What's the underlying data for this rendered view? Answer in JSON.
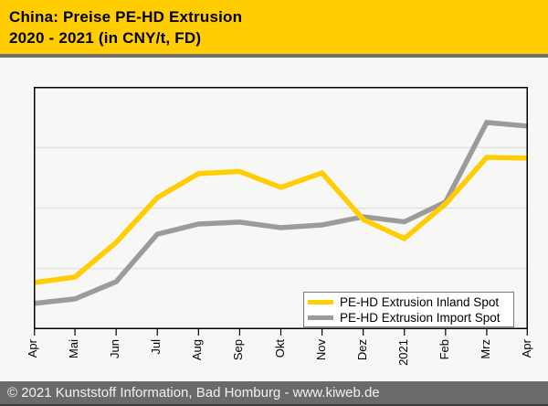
{
  "header": {
    "title_line1": "China: Preise PE-HD Extrusion",
    "title_line2": "2020 - 2021 (in CNY/t, FD)"
  },
  "colors": {
    "accent_yellow": "#ffcd00",
    "separator_gray": "#6f6f6f",
    "footer_bg": "#6a6a6a",
    "page_bg": "#f7f7f6",
    "gridline": "#dbdbdb",
    "plot_border": "#000000"
  },
  "chart_data": {
    "type": "line",
    "x": [
      "Apr",
      "Mai",
      "Jun",
      "Jul",
      "Aug",
      "Sep",
      "Okt",
      "Nov",
      "Dez",
      "2021",
      "Feb",
      "Mrz",
      "Apr"
    ],
    "series": [
      {
        "name": "PE-HD Extrusion Inland Spot",
        "color": "#ffcd00",
        "values_percent": [
          19.2,
          21.5,
          35.8,
          54.3,
          64.2,
          65.1,
          58.5,
          64.5,
          45.3,
          37.4,
          51.7,
          70.9,
          70.6
        ]
      },
      {
        "name": "PE-HD Extrusion Import Spot",
        "color": "#9b9b9b",
        "values_percent": [
          10.6,
          12.5,
          19.6,
          39.2,
          43.4,
          44.2,
          41.9,
          43.0,
          46.4,
          44.3,
          52.5,
          85.3,
          83.8
        ]
      }
    ],
    "title": "China: Preise PE-HD Extrusion 2020 - 2021 (in CNY/t, FD)",
    "xlabel": "",
    "ylabel": "",
    "y_axis_tick_labels": "none shown; values are percent of plot height",
    "ylim": [
      0,
      100
    ],
    "gridlines_percent": [
      25,
      50,
      75
    ],
    "grid": "horizontal only",
    "legend_position": "inside bottom-right",
    "draw_order": "Import Spot behind, Inland Spot on top"
  },
  "footer": {
    "copyright": "© 2021 Kunststoff Information, Bad Homburg - www.kiweb.de"
  }
}
